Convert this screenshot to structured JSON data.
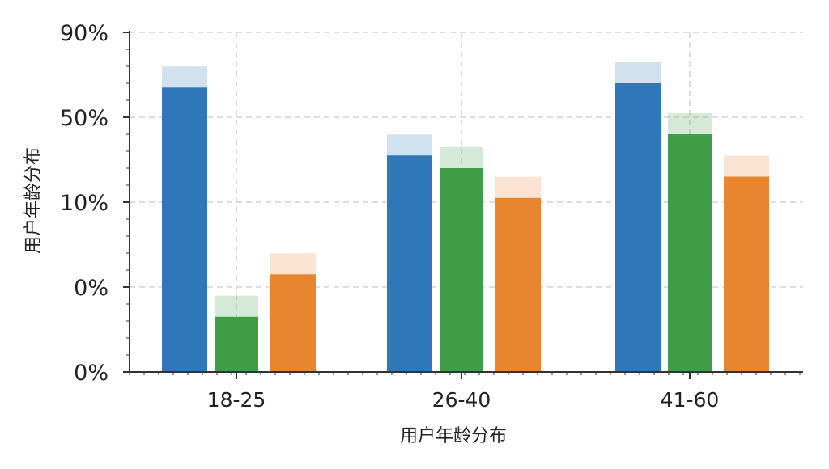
{
  "chart_data": {
    "type": "bar",
    "title": "",
    "xlabel": "用户年龄分布",
    "ylabel": "用户年龄分布",
    "y_tick_labels": [
      "0%",
      "0%",
      "10%",
      "50%",
      "90%"
    ],
    "categories": [
      "18-25",
      "26-40",
      "41-60"
    ],
    "series": [
      {
        "color": "#2e77b8",
        "values": [
          67,
          51,
          68
        ]
      },
      {
        "color": "#3f9e45",
        "values": [
          13,
          48,
          56
        ]
      },
      {
        "color": "#e8862f",
        "values": [
          23,
          41,
          46
        ]
      }
    ],
    "ylim": [
      0,
      80
    ],
    "grid": true,
    "legend": "none",
    "colors": {
      "blue": "#2e77b8",
      "green": "#3f9e45",
      "orange": "#e8862f",
      "grid": "#d4d4d4",
      "axis": "#333333"
    }
  }
}
